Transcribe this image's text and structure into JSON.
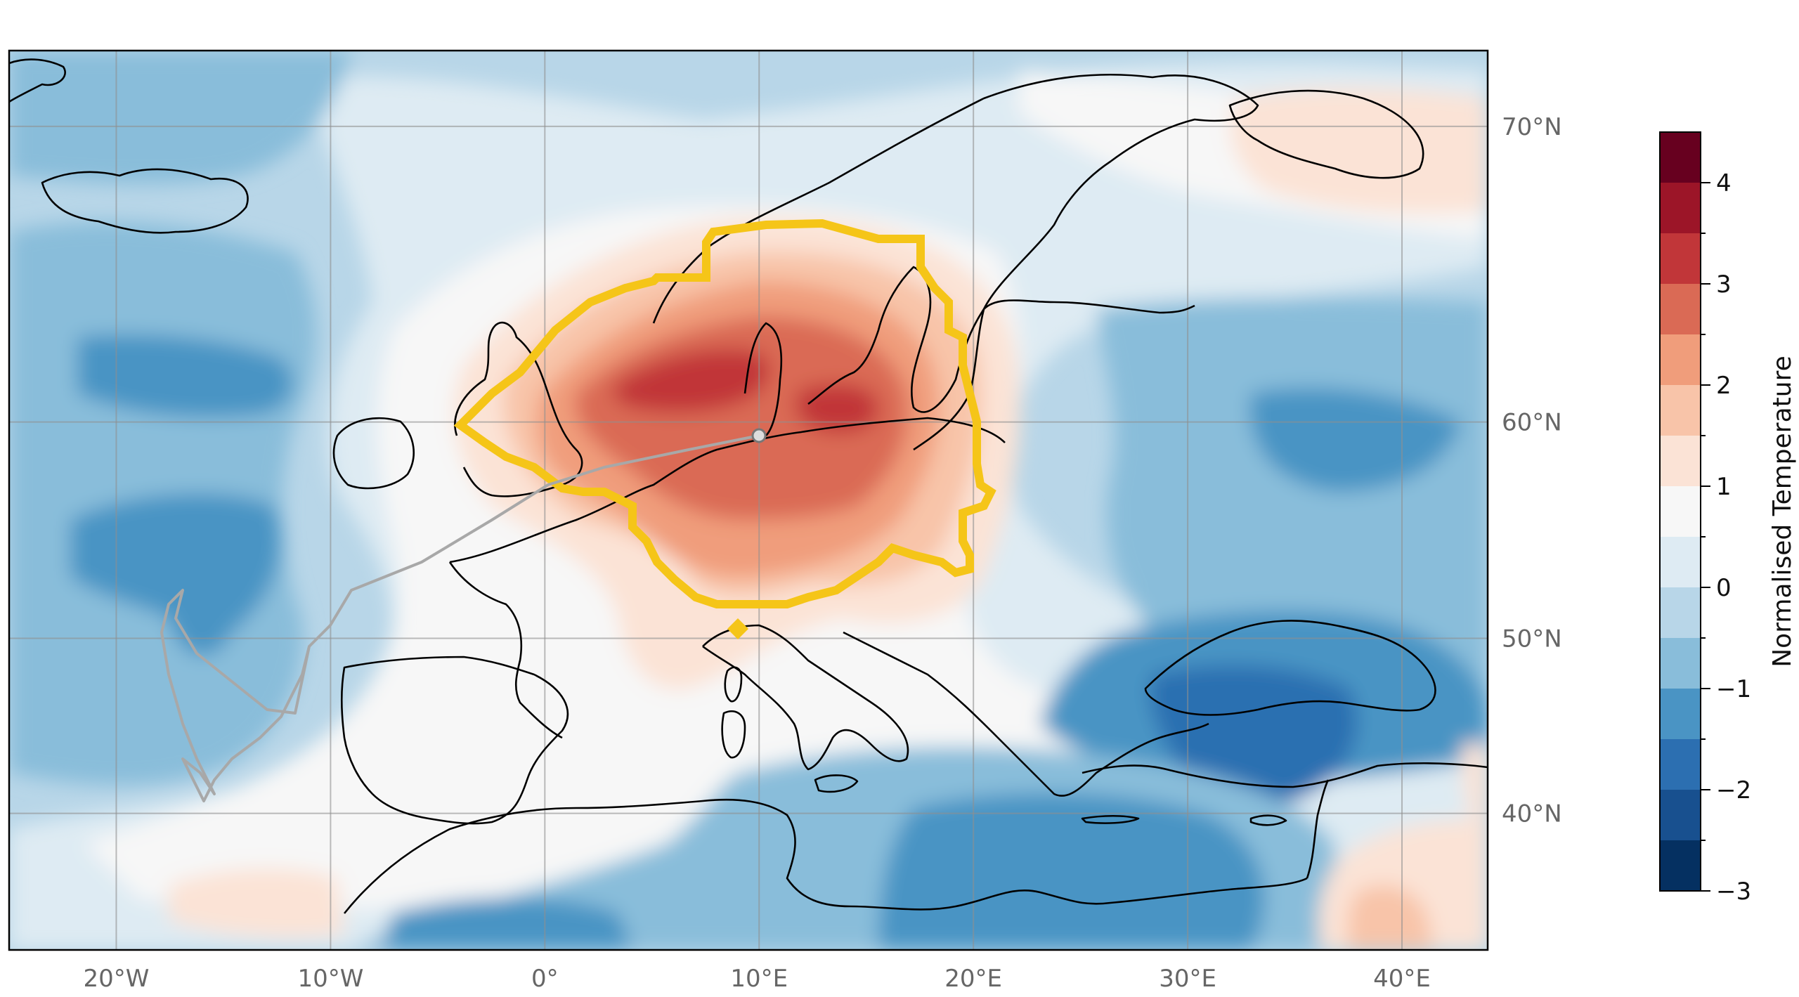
{
  "map": {
    "lon_range": [
      -25,
      44
    ],
    "lat_range": [
      31,
      72
    ],
    "lon_ticks": [
      {
        "value": -20,
        "label": "20°W"
      },
      {
        "value": -10,
        "label": "10°W"
      },
      {
        "value": 0,
        "label": "0°"
      },
      {
        "value": 10,
        "label": "10°E"
      },
      {
        "value": 20,
        "label": "20°E"
      },
      {
        "value": 30,
        "label": "30°E"
      },
      {
        "value": 40,
        "label": "40°E"
      }
    ],
    "lat_ticks": [
      {
        "value": 70,
        "label": "70°N"
      },
      {
        "value": 60,
        "label": "60°N"
      },
      {
        "value": 50,
        "label": "50°N"
      },
      {
        "value": 40,
        "label": "40°N"
      }
    ],
    "gridlines": true,
    "highlight_color": "#F5C518",
    "track_color": "#A8A8A8",
    "coastline_color": "#000000"
  },
  "colorbar": {
    "label": "Normalised Temperature",
    "min": -3,
    "max": 4.5,
    "tick_labels": [
      {
        "value": 4,
        "label": "4"
      },
      {
        "value": 3,
        "label": "3"
      },
      {
        "value": 2,
        "label": "2"
      },
      {
        "value": 1,
        "label": "1"
      },
      {
        "value": 0,
        "label": "0"
      },
      {
        "value": -1,
        "label": "−1"
      },
      {
        "value": -2,
        "label": "−2"
      },
      {
        "value": -3,
        "label": "−3"
      }
    ],
    "levels": [
      {
        "from": -3.0,
        "to": -2.5,
        "color": "#053061"
      },
      {
        "from": -2.5,
        "to": -2.0,
        "color": "#18508f"
      },
      {
        "from": -2.0,
        "to": -1.5,
        "color": "#2c6fb1"
      },
      {
        "from": -1.5,
        "to": -1.0,
        "color": "#4a94c4"
      },
      {
        "from": -1.0,
        "to": -0.5,
        "color": "#89bdda"
      },
      {
        "from": -0.5,
        "to": 0.0,
        "color": "#b8d6e8"
      },
      {
        "from": 0.0,
        "to": 0.5,
        "color": "#deebf3"
      },
      {
        "from": 0.5,
        "to": 1.0,
        "color": "#f7f7f7"
      },
      {
        "from": 1.0,
        "to": 1.5,
        "color": "#fbe3d6"
      },
      {
        "from": 1.5,
        "to": 2.0,
        "color": "#f8c4a9"
      },
      {
        "from": 2.0,
        "to": 2.5,
        "color": "#f09d7b"
      },
      {
        "from": 2.5,
        "to": 3.0,
        "color": "#da6a55"
      },
      {
        "from": 3.0,
        "to": 3.5,
        "color": "#c13639"
      },
      {
        "from": 3.5,
        "to": 4.0,
        "color": "#9c1528"
      },
      {
        "from": 4.0,
        "to": 4.5,
        "color": "#67001f"
      }
    ]
  }
}
